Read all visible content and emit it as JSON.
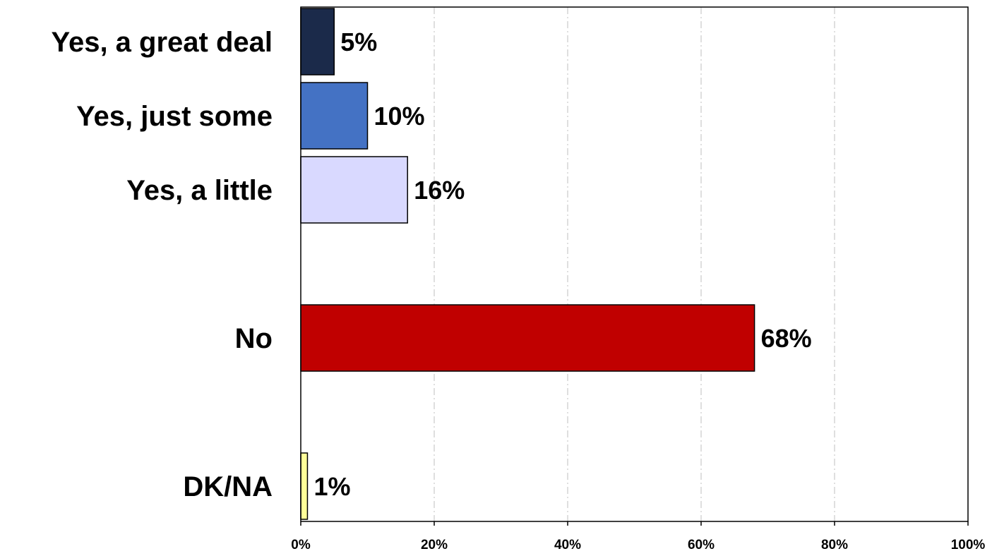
{
  "chart_data": {
    "type": "bar",
    "orientation": "horizontal",
    "categories": [
      "Yes, a great deal",
      "Yes, just some",
      "Yes, a little",
      "No",
      "DK/NA"
    ],
    "values": [
      5,
      10,
      16,
      68,
      1
    ],
    "value_labels": [
      "5%",
      "10%",
      "16%",
      "68%",
      "1%"
    ],
    "colors": [
      "#1b2a4a",
      "#4472c4",
      "#d9d9ff",
      "#c00000",
      "#ffff99"
    ],
    "xlim": [
      0,
      100
    ],
    "x_ticks": [
      0,
      20,
      40,
      60,
      80,
      100
    ],
    "x_tick_labels": [
      "0%",
      "20%",
      "40%",
      "60%",
      "80%",
      "100%"
    ],
    "grid": "vertical dashed",
    "legend": "none",
    "title": "",
    "xlabel": "",
    "ylabel": ""
  }
}
